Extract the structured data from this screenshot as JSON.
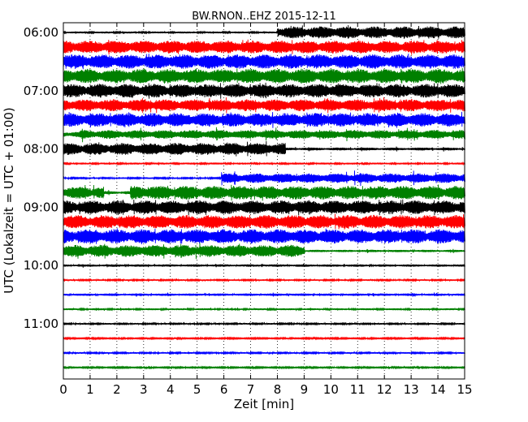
{
  "chart_data": {
    "type": "line",
    "title": "BW.RNON..EHZ 2015-12-11",
    "xlabel": "Zeit  [min]",
    "ylabel": "UTC (Lokalzeit = UTC + 01:00)",
    "xlim": [
      0,
      15
    ],
    "xticks": [
      "0",
      "1",
      "2",
      "3",
      "4",
      "5",
      "6",
      "7",
      "8",
      "9",
      "10",
      "11",
      "12",
      "13",
      "14",
      "15"
    ],
    "yticks": [
      {
        "label": "06:00",
        "row": 0
      },
      {
        "label": "07:00",
        "row": 4
      },
      {
        "label": "08:00",
        "row": 8
      },
      {
        "label": "09:00",
        "row": 12
      },
      {
        "label": "10:00",
        "row": 16
      },
      {
        "label": "11:00",
        "row": 20
      }
    ],
    "grid": "vertical-dotted",
    "row_minutes": 15,
    "colors": [
      "#000000",
      "#ff0000",
      "#0000ff",
      "#008000"
    ],
    "series": [
      {
        "start": "06:00",
        "segments": [
          [
            0,
            8,
            0.12
          ],
          [
            8,
            15,
            0.75
          ]
        ]
      },
      {
        "start": "06:15",
        "segments": [
          [
            0,
            15,
            0.8
          ]
        ]
      },
      {
        "start": "06:30",
        "segments": [
          [
            0,
            15,
            0.9
          ]
        ]
      },
      {
        "start": "06:45",
        "segments": [
          [
            0,
            15,
            0.9
          ]
        ]
      },
      {
        "start": "07:00",
        "segments": [
          [
            0,
            15,
            0.85
          ]
        ]
      },
      {
        "start": "07:15",
        "segments": [
          [
            0,
            15,
            0.75
          ]
        ]
      },
      {
        "start": "07:30",
        "segments": [
          [
            0,
            15,
            0.85
          ]
        ]
      },
      {
        "start": "07:45",
        "segments": [
          [
            0,
            0.6,
            0.35
          ],
          [
            0.6,
            15,
            0.55
          ]
        ]
      },
      {
        "start": "08:00",
        "segments": [
          [
            0,
            8.3,
            0.75
          ],
          [
            8.3,
            15,
            0.18
          ]
        ]
      },
      {
        "start": "08:15",
        "segments": [
          [
            0,
            15,
            0.12
          ]
        ]
      },
      {
        "start": "08:30",
        "segments": [
          [
            0,
            5.9,
            0.1
          ],
          [
            5.9,
            15,
            0.6
          ]
        ]
      },
      {
        "start": "08:45",
        "segments": [
          [
            0,
            1.5,
            0.75
          ],
          [
            1.5,
            2.5,
            0.2
          ],
          [
            2.5,
            15,
            0.85
          ]
        ]
      },
      {
        "start": "09:00",
        "segments": [
          [
            0,
            15,
            0.85
          ]
        ]
      },
      {
        "start": "09:15",
        "segments": [
          [
            0,
            15,
            0.85
          ]
        ]
      },
      {
        "start": "09:30",
        "segments": [
          [
            0,
            15,
            0.9
          ]
        ]
      },
      {
        "start": "09:45",
        "segments": [
          [
            0,
            9,
            0.75
          ],
          [
            9,
            15,
            0.15
          ]
        ]
      },
      {
        "start": "10:00",
        "segments": [
          [
            0,
            15,
            0.15
          ]
        ]
      },
      {
        "start": "10:15",
        "segments": [
          [
            0,
            15,
            0.1
          ]
        ]
      },
      {
        "start": "10:30",
        "segments": [
          [
            0,
            15,
            0.15
          ]
        ]
      },
      {
        "start": "10:45",
        "segments": [
          [
            0,
            15,
            0.12
          ]
        ]
      },
      {
        "start": "11:00",
        "segments": [
          [
            0,
            15,
            0.1
          ]
        ]
      },
      {
        "start": "11:15",
        "segments": [
          [
            0,
            15,
            0.08
          ]
        ]
      },
      {
        "start": "11:30",
        "segments": [
          [
            0,
            15,
            0.1
          ]
        ]
      },
      {
        "start": "11:45",
        "segments": [
          [
            0,
            15,
            0.08
          ]
        ]
      }
    ]
  }
}
